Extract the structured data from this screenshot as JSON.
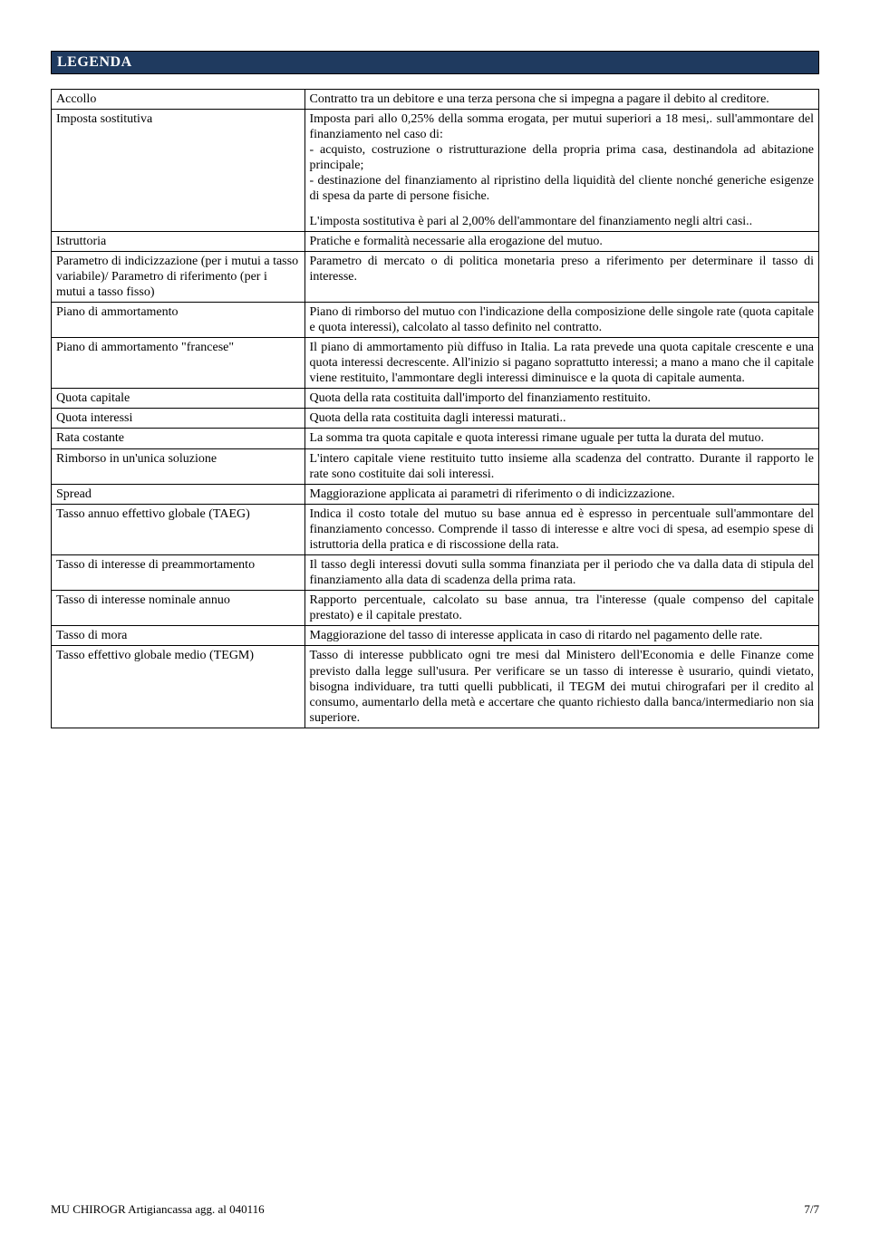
{
  "header": {
    "title": "LEGENDA"
  },
  "table": {
    "rows": [
      {
        "term": "Accollo",
        "def_align": "justify",
        "definition": "Contratto tra un debitore e una terza persona che si impegna a pagare il debito al creditore."
      },
      {
        "term": "Imposta sostitutiva",
        "def_align": "justify",
        "definition_blocks": [
          "Imposta pari allo 0,25% della somma erogata, per mutui superiori a 18 mesi,. sull'ammontare del finanziamento nel caso di:\n- acquisto, costruzione o ristrutturazione della propria prima casa, destinandola ad abitazione principale;\n- destinazione del finanziamento al ripristino della liquidità del cliente nonché generiche esigenze di spesa da parte di persone fisiche.",
          "L'imposta sostitutiva è pari al 2,00% dell'ammontare del finanziamento negli altri casi.."
        ]
      },
      {
        "term": "Istruttoria",
        "def_align": "left",
        "definition": "Pratiche e formalità necessarie alla erogazione del mutuo."
      },
      {
        "term": "Parametro di indicizzazione (per i mutui a tasso variabile)/ Parametro di riferimento (per i mutui a tasso fisso)",
        "def_align": "justify",
        "definition": "Parametro di mercato o di politica monetaria preso a riferimento per determinare il tasso di interesse."
      },
      {
        "term": "Piano di ammortamento",
        "def_align": "justify",
        "definition": "Piano di rimborso del mutuo con l'indicazione della composizione delle singole rate (quota capitale e quota interessi), calcolato al tasso definito nel contratto."
      },
      {
        "term": "Piano di ammortamento \"francese\"",
        "def_align": "justify",
        "definition": "Il piano di ammortamento più diffuso in Italia. La rata prevede una quota capitale crescente e una quota interessi decrescente. All'inizio si pagano soprattutto interessi; a mano a mano che il capitale viene restituito, l'ammontare degli interessi diminuisce e la quota di capitale aumenta."
      },
      {
        "term": "Quota capitale",
        "def_align": "left",
        "definition": "Quota della rata costituita dall'importo del finanziamento restituito."
      },
      {
        "term": "Quota interessi",
        "def_align": "left",
        "definition": "Quota della rata costituita dagli interessi maturati.."
      },
      {
        "term": "Rata costante",
        "def_align": "justify",
        "definition": "La somma tra quota capitale e quota interessi rimane uguale per tutta la durata del mutuo."
      },
      {
        "term": "Rimborso in un'unica soluzione",
        "def_align": "justify",
        "definition": "L'intero capitale viene restituito tutto insieme alla scadenza del contratto. Durante il rapporto le rate sono costituite dai soli interessi."
      },
      {
        "term": "Spread",
        "def_align": "left",
        "definition": "Maggiorazione applicata ai parametri di riferimento o di indicizzazione."
      },
      {
        "term": "Tasso annuo effettivo globale (TAEG)",
        "def_align": "justify",
        "definition": "Indica il costo totale del mutuo su base annua ed è espresso in percentuale sull'ammontare del finanziamento concesso. Comprende il tasso di interesse e altre voci di spesa, ad esempio spese di istruttoria della pratica e di riscossione della rata."
      },
      {
        "term": "Tasso di interesse di preammortamento",
        "def_align": "justify",
        "definition": "Il tasso degli interessi dovuti sulla somma finanziata per il periodo che va dalla data di stipula del finanziamento alla data di scadenza della prima rata."
      },
      {
        "term": "Tasso di interesse nominale annuo",
        "def_align": "justify",
        "definition": "Rapporto percentuale, calcolato su base annua, tra l'interesse (quale compenso del capitale prestato) e il capitale prestato."
      },
      {
        "term": "Tasso di mora",
        "def_align": "justify",
        "definition": "Maggiorazione del tasso di interesse applicata in caso di ritardo nel pagamento delle rate."
      },
      {
        "term": "Tasso effettivo globale medio (TEGM)",
        "def_align": "justify",
        "definition": "Tasso di interesse pubblicato ogni tre mesi dal Ministero dell'Economia e delle Finanze come previsto dalla legge sull'usura. Per verificare se un tasso di interesse è usurario, quindi vietato, bisogna individuare, tra tutti quelli pubblicati, il TEGM dei mutui chirografari per il credito al consumo, aumentarlo della metà e accertare che quanto richiesto dalla banca/intermediario non sia superiore."
      }
    ]
  },
  "footer": {
    "left": "MU CHIROGR Artigiancassa agg. al 040116",
    "right": "7/7"
  },
  "colors": {
    "header_bg": "#1f3a5f",
    "header_fg": "#ffffff",
    "border": "#000000",
    "page_bg": "#ffffff",
    "text": "#000000"
  }
}
